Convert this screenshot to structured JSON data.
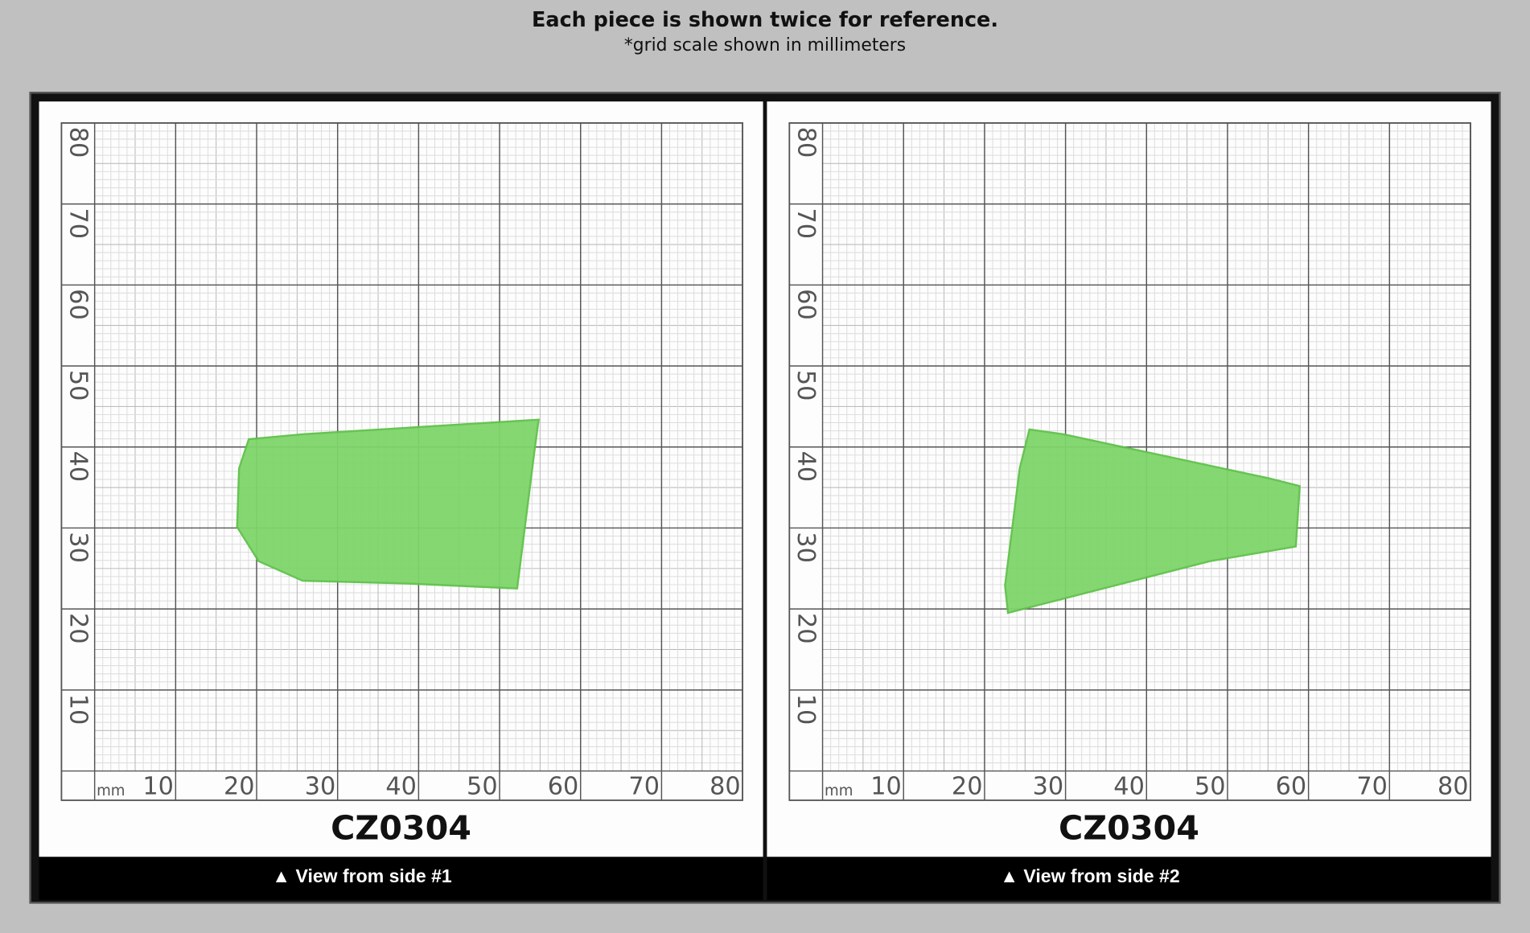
{
  "header": {
    "title": "Each piece is shown twice for reference.",
    "subtitle": "*grid scale shown in millimeters"
  },
  "panels": [
    {
      "code": "CZ0304",
      "caption": "▲ View from side #1",
      "unit": "mm",
      "x_labels": [
        10,
        20,
        30,
        40,
        50,
        60,
        70,
        80
      ],
      "y_labels": [
        10,
        20,
        30,
        40,
        50,
        60,
        70,
        80
      ]
    },
    {
      "code": "CZ0304",
      "caption": "▲ View from side #2",
      "unit": "mm",
      "x_labels": [
        10,
        20,
        30,
        40,
        50,
        60,
        70,
        80
      ],
      "y_labels": [
        10,
        20,
        30,
        40,
        50,
        60,
        70,
        80
      ]
    }
  ]
}
